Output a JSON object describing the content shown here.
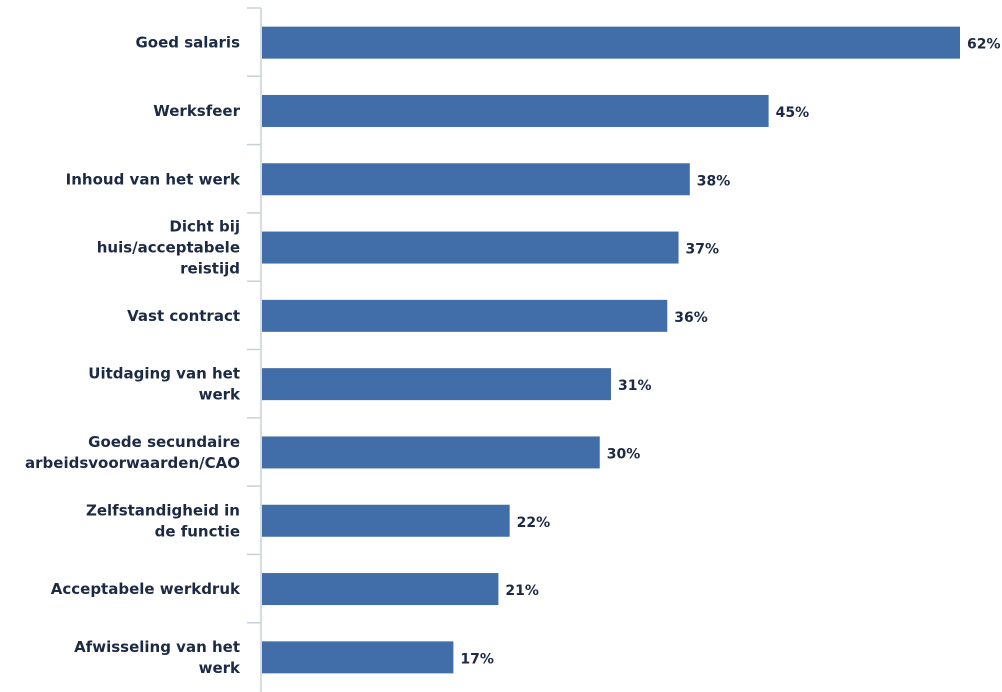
{
  "colors": {
    "bar": "#416ea8",
    "text": "#1d2a44",
    "axis": "#c8d0dc"
  },
  "chart_data": {
    "type": "bar",
    "orientation": "horizontal",
    "categories": [
      "Goed salaris",
      "Werksfeer",
      "Inhoud van het werk",
      "Dicht bij huis/acceptabele reistijd",
      "Vast contract",
      "Uitdaging van het werk",
      "Goede secundaire arbeidsvoorwaarden/CAO",
      "Zelfstandigheid in de functie",
      "Acceptabele werkdruk",
      "Afwisseling van het werk"
    ],
    "category_lines": [
      [
        "Goed salaris"
      ],
      [
        "Werksfeer"
      ],
      [
        "Inhoud van het werk"
      ],
      [
        "Dicht bij",
        "huis/acceptabele",
        "reistijd"
      ],
      [
        "Vast contract"
      ],
      [
        "Uitdaging van het",
        "werk"
      ],
      [
        "Goede secundaire",
        "arbeidsvoorwaarden/CAO"
      ],
      [
        "Zelfstandigheid in",
        "de functie"
      ],
      [
        "Acceptabele werkdruk"
      ],
      [
        "Afwisseling van het",
        "werk"
      ]
    ],
    "values": [
      62,
      45,
      38,
      37,
      36,
      31,
      30,
      22,
      21,
      17
    ],
    "value_labels": [
      "62%",
      "45%",
      "38%",
      "37%",
      "36%",
      "31%",
      "30%",
      "22%",
      "21%",
      "17%"
    ],
    "title": "",
    "xlabel": "",
    "ylabel": "",
    "xlim": [
      0,
      62
    ],
    "grid": false,
    "legend": "none"
  }
}
